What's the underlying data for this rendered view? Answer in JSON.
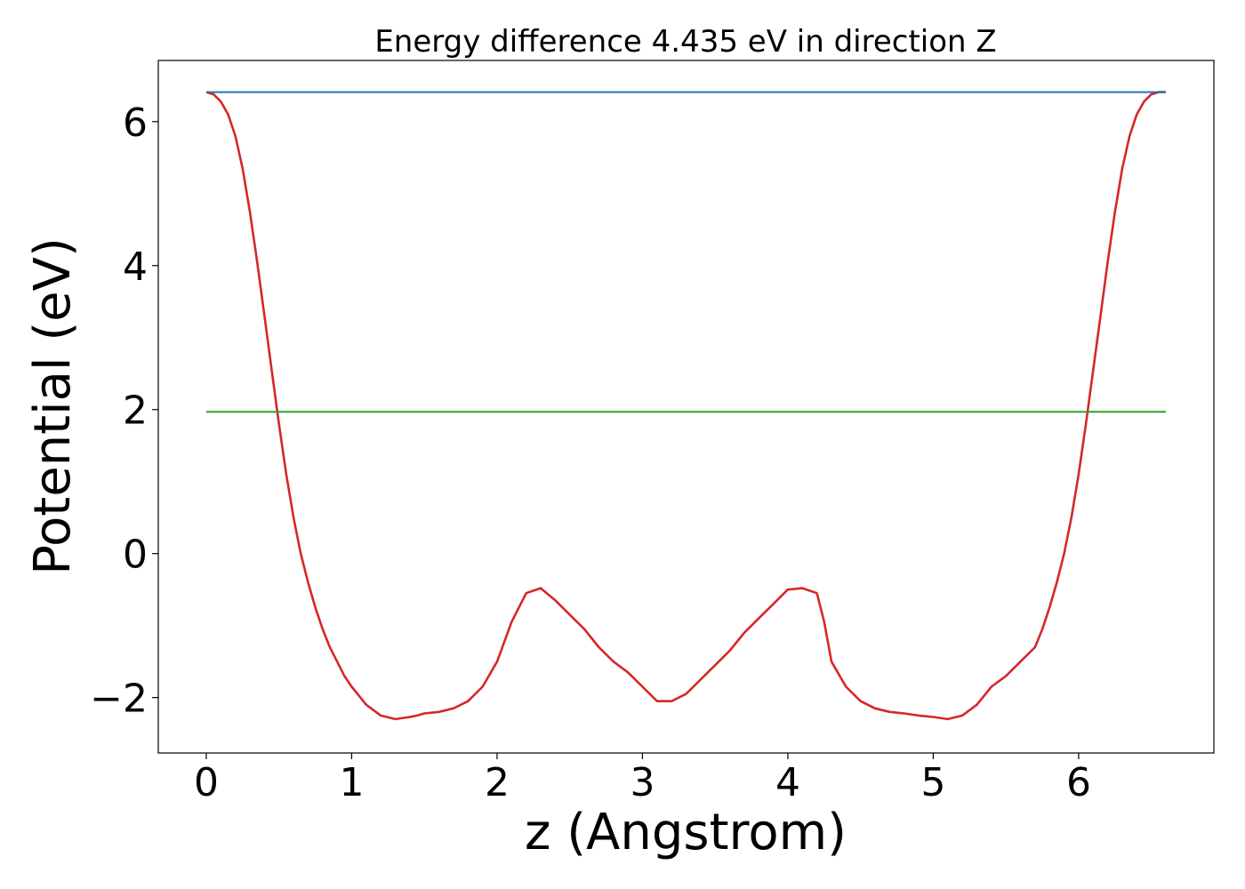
{
  "chart_data": {
    "type": "line",
    "title": "Energy difference 4.435 eV in direction Z",
    "xlabel": "z (Angstrom)",
    "ylabel": "Potential (eV)",
    "xlim": [
      -0.33,
      6.93
    ],
    "ylim": [
      -2.77,
      6.85
    ],
    "xticks": [
      0,
      1,
      2,
      3,
      4,
      5,
      6
    ],
    "xtick_labels": [
      "0",
      "1",
      "2",
      "3",
      "4",
      "5",
      "6"
    ],
    "yticks": [
      -2,
      0,
      2,
      4,
      6
    ],
    "ytick_labels": [
      "−2",
      "0",
      "2",
      "4",
      "6"
    ],
    "grid": false,
    "series": [
      {
        "color": "#d62728",
        "x": [
          0.0,
          0.05,
          0.1,
          0.15,
          0.2,
          0.25,
          0.3,
          0.35,
          0.4,
          0.45,
          0.5,
          0.55,
          0.6,
          0.65,
          0.7,
          0.75,
          0.8,
          0.85,
          0.9,
          0.95,
          1.0,
          1.1,
          1.2,
          1.3,
          1.4,
          1.45,
          1.5,
          1.6,
          1.7,
          1.8,
          1.9,
          2.0,
          2.1,
          2.2,
          2.3,
          2.4,
          2.5,
          2.6,
          2.7,
          2.8,
          2.9,
          3.0,
          3.1,
          3.2,
          3.3,
          3.35,
          3.4,
          3.5,
          3.6,
          3.7,
          3.8,
          3.9,
          4.0,
          4.1,
          4.2,
          4.25,
          4.3,
          4.4,
          4.5,
          4.6,
          4.7,
          4.8,
          4.9,
          5.0,
          5.1,
          5.2,
          5.3,
          5.4,
          5.5,
          5.6,
          5.7,
          5.75,
          5.8,
          5.85,
          5.9,
          5.95,
          6.0,
          6.05,
          6.1,
          6.15,
          6.2,
          6.25,
          6.3,
          6.35,
          6.4,
          6.45,
          6.5,
          6.55,
          6.6
        ],
        "y": [
          6.41,
          6.38,
          6.28,
          6.1,
          5.8,
          5.35,
          4.75,
          4.05,
          3.3,
          2.55,
          1.8,
          1.1,
          0.5,
          0.0,
          -0.4,
          -0.75,
          -1.05,
          -1.3,
          -1.5,
          -1.7,
          -1.85,
          -2.1,
          -2.25,
          -2.3,
          -2.27,
          -2.25,
          -2.22,
          -2.2,
          -2.15,
          -2.05,
          -1.85,
          -1.5,
          -0.95,
          -0.55,
          -0.48,
          -0.65,
          -0.85,
          -1.05,
          -1.3,
          -1.5,
          -1.65,
          -1.85,
          -2.05,
          -2.05,
          -1.95,
          -1.85,
          -1.75,
          -1.55,
          -1.35,
          -1.1,
          -0.9,
          -0.7,
          -0.5,
          -0.48,
          -0.55,
          -0.95,
          -1.5,
          -1.85,
          -2.05,
          -2.15,
          -2.2,
          -2.22,
          -2.25,
          -2.27,
          -2.3,
          -2.25,
          -2.1,
          -1.85,
          -1.7,
          -1.5,
          -1.3,
          -1.05,
          -0.75,
          -0.4,
          0.0,
          0.5,
          1.1,
          1.8,
          2.55,
          3.3,
          4.05,
          4.75,
          5.35,
          5.8,
          6.1,
          6.28,
          6.38,
          6.41,
          6.41
        ]
      },
      {
        "color": "#1f77b4",
        "x": [
          0.0,
          6.6
        ],
        "y": [
          6.41,
          6.41
        ]
      },
      {
        "color": "#2ca02c",
        "x": [
          0.0,
          6.6
        ],
        "y": [
          1.97,
          1.97
        ]
      }
    ]
  }
}
